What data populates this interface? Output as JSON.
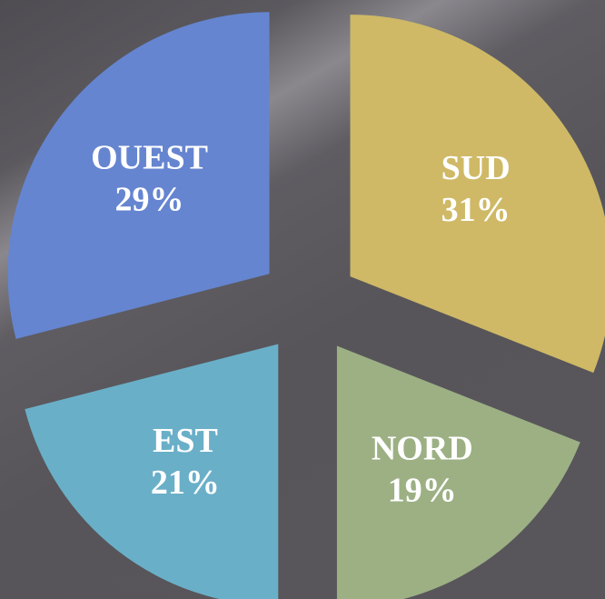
{
  "chart_data": {
    "type": "pie",
    "categories": [
      "SUD",
      "NORD",
      "EST",
      "OUEST"
    ],
    "values": [
      31,
      19,
      21,
      29
    ],
    "value_labels": [
      "31%",
      "19%",
      "21%",
      "29%"
    ],
    "colors": [
      "#cfb966",
      "#9cb084",
      "#6aafc8",
      "#6585d0"
    ],
    "exploded": true
  }
}
